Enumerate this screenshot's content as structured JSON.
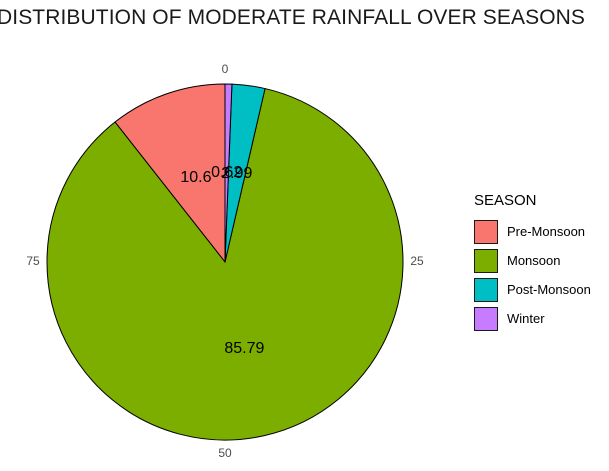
{
  "chart_data": {
    "type": "pie",
    "title": "DISTRIBUTION OF MODERATE RAINFALL OVER SEASONS",
    "legend_title": "SEASON",
    "legend_position": "right",
    "categories": [
      "Pre-Monsoon",
      "Monsoon",
      "Post-Monsoon",
      "Winter"
    ],
    "values": [
      10.6,
      85.79,
      2.99,
      0.62
    ],
    "data_labels": [
      "10.6",
      "85.79",
      "2.99",
      "0.62"
    ],
    "colors": [
      "#F8766D",
      "#7CAE00",
      "#00BFC4",
      "#C77CFF"
    ],
    "axis_ticks": [
      "0",
      "25",
      "50",
      "75"
    ],
    "grid": true
  }
}
